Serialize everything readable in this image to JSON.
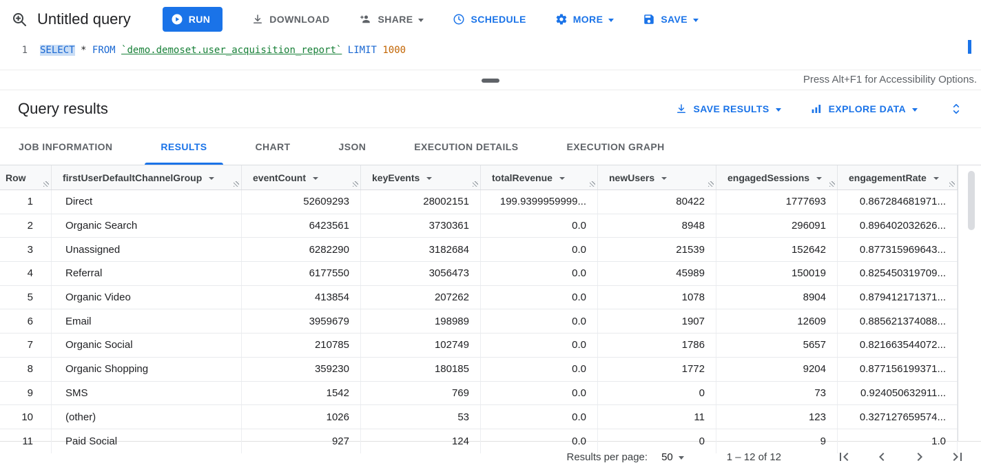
{
  "toolbar": {
    "title": "Untitled query",
    "run": "RUN",
    "download": "DOWNLOAD",
    "share": "SHARE",
    "schedule": "SCHEDULE",
    "more": "MORE",
    "save": "SAVE"
  },
  "editor": {
    "line_number": "1",
    "sql_select": "SELECT",
    "sql_star": "*",
    "sql_from": "FROM",
    "sql_table": "`demo.demoset.user_acquisition_report`",
    "sql_limit": "LIMIT",
    "sql_limit_value": "1000",
    "accessibility_note": "Press Alt+F1 for Accessibility Options."
  },
  "results_header": {
    "title": "Query results",
    "save_results": "SAVE RESULTS",
    "explore_data": "EXPLORE DATA"
  },
  "tabs": [
    {
      "label": "JOB INFORMATION",
      "active": false
    },
    {
      "label": "RESULTS",
      "active": true
    },
    {
      "label": "CHART",
      "active": false
    },
    {
      "label": "JSON",
      "active": false
    },
    {
      "label": "EXECUTION DETAILS",
      "active": false
    },
    {
      "label": "EXECUTION GRAPH",
      "active": false
    }
  ],
  "table": {
    "columns": [
      {
        "label": "Row",
        "sortable": false
      },
      {
        "label": "firstUserDefaultChannelGroup",
        "sortable": true
      },
      {
        "label": "eventCount",
        "sortable": true
      },
      {
        "label": "keyEvents",
        "sortable": true
      },
      {
        "label": "totalRevenue",
        "sortable": true
      },
      {
        "label": "newUsers",
        "sortable": true
      },
      {
        "label": "engagedSessions",
        "sortable": true
      },
      {
        "label": "engagementRate",
        "sortable": true
      }
    ],
    "rows": [
      [
        "1",
        "Direct",
        "52609293",
        "28002151",
        "199.9399959999...",
        "80422",
        "1777693",
        "0.867284681971..."
      ],
      [
        "2",
        "Organic Search",
        "6423561",
        "3730361",
        "0.0",
        "8948",
        "296091",
        "0.896402032626..."
      ],
      [
        "3",
        "Unassigned",
        "6282290",
        "3182684",
        "0.0",
        "21539",
        "152642",
        "0.877315969643..."
      ],
      [
        "4",
        "Referral",
        "6177550",
        "3056473",
        "0.0",
        "45989",
        "150019",
        "0.825450319709..."
      ],
      [
        "5",
        "Organic Video",
        "413854",
        "207262",
        "0.0",
        "1078",
        "8904",
        "0.879412171371..."
      ],
      [
        "6",
        "Email",
        "3959679",
        "198989",
        "0.0",
        "1907",
        "12609",
        "0.885621374088..."
      ],
      [
        "7",
        "Organic Social",
        "210785",
        "102749",
        "0.0",
        "1786",
        "5657",
        "0.821663544072..."
      ],
      [
        "8",
        "Organic Shopping",
        "359230",
        "180185",
        "0.0",
        "1772",
        "9204",
        "0.877156199371..."
      ],
      [
        "9",
        "SMS",
        "1542",
        "769",
        "0.0",
        "0",
        "73",
        "0.924050632911..."
      ],
      [
        "10",
        "(other)",
        "1026",
        "53",
        "0.0",
        "11",
        "123",
        "0.327127659574..."
      ],
      [
        "11",
        "Paid Social",
        "927",
        "124",
        "0.0",
        "0",
        "9",
        "1.0"
      ]
    ],
    "last_row_clipped": true
  },
  "pagination": {
    "per_page_label": "Results per page:",
    "per_page_value": "50",
    "range_text": "1 – 12 of 12"
  },
  "colors": {
    "accent_blue": "#1a73e8",
    "keyword_blue": "#1967d2",
    "table_link_green": "#188038",
    "number_literal_orange": "#c26401",
    "text_dark": "#202124",
    "text_gray": "#5f6368",
    "border": "#dadce0"
  }
}
